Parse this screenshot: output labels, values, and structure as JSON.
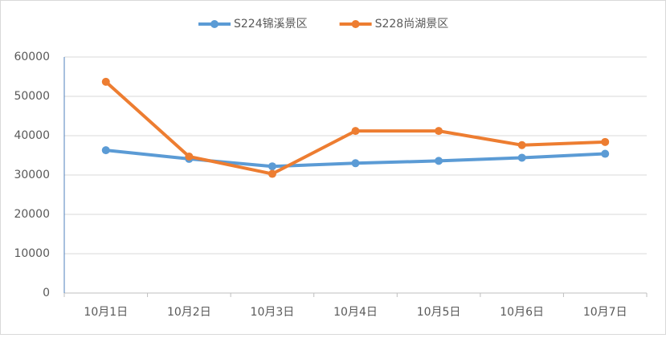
{
  "chart_data": {
    "type": "line",
    "categories": [
      "10月1日",
      "10月2日",
      "10月3日",
      "10月4日",
      "10月5日",
      "10月6日",
      "10月7日"
    ],
    "series": [
      {
        "name": "S224锦溪景区",
        "color": "#5b9bd5",
        "values": [
          36300,
          34100,
          32200,
          33000,
          33600,
          34400,
          35400
        ]
      },
      {
        "name": "S228尚湖景区",
        "color": "#ed7d31",
        "values": [
          53700,
          34700,
          30300,
          41200,
          41200,
          37600,
          38400
        ]
      }
    ],
    "ylim": [
      0,
      60000
    ],
    "yticks": [
      0,
      10000,
      20000,
      30000,
      40000,
      50000,
      60000
    ],
    "grid": true,
    "legend": "top"
  }
}
